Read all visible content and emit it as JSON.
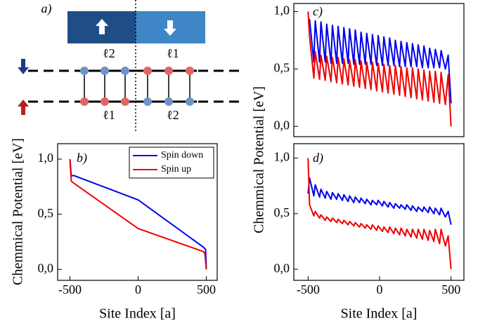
{
  "diagram": {
    "label": "a)",
    "top_labels": [
      "ℓ2",
      "ℓ1"
    ],
    "bottom_labels": [
      "ℓ1",
      "ℓ2"
    ]
  },
  "chart_data": [
    {
      "type": "line",
      "panel_label": "b)",
      "xlabel": "Site Index [a]",
      "ylabel": "Chemmical Potential [eV]",
      "xlim": [
        -590,
        580
      ],
      "ylim": [
        -0.1,
        1.14
      ],
      "xticks": [
        -500,
        0,
        500
      ],
      "yticks": [
        {
          "value": 0,
          "label": "0,0"
        },
        {
          "value": 0.5,
          "label": "0,5"
        },
        {
          "value": 1,
          "label": "1,0"
        }
      ],
      "legend": "upper right",
      "series": [
        {
          "name": "Spin down",
          "color": "#0000ee",
          "x": [
            -500,
            -490,
            -470,
            0,
            480,
            495,
            500
          ],
          "values": [
            1.0,
            0.85,
            0.85,
            0.63,
            0.2,
            0.18,
            0.0
          ]
        },
        {
          "name": "Spin up",
          "color": "#ee0000",
          "x": [
            -500,
            -490,
            -470,
            0,
            480,
            490,
            500
          ],
          "values": [
            1.0,
            0.8,
            0.78,
            0.37,
            0.16,
            0.14,
            0.0
          ]
        }
      ]
    },
    {
      "type": "line",
      "panel_label": "c)",
      "ylabel": "Chemmical Potential [eV]",
      "xlim": [
        -600,
        590
      ],
      "ylim": [
        -0.09,
        1.07
      ],
      "yticks": [
        {
          "value": 0,
          "label": "0,0"
        },
        {
          "value": 0.5,
          "label": "0,5"
        },
        {
          "value": 1,
          "label": "1,0"
        }
      ],
      "x": [
        -500,
        -490,
        -460,
        -450,
        -420,
        -410,
        -380,
        -370,
        -340,
        -330,
        -300,
        -290,
        -260,
        -250,
        -220,
        -210,
        -180,
        -170,
        -140,
        -130,
        -100,
        -90,
        -60,
        -50,
        -20,
        -10,
        20,
        30,
        60,
        70,
        100,
        110,
        140,
        150,
        180,
        190,
        220,
        230,
        260,
        270,
        300,
        310,
        340,
        350,
        380,
        390,
        420,
        430,
        460,
        480,
        500
      ],
      "series": [
        {
          "color": "#0000ee",
          "values": [
            0.92,
            0.93,
            0.56,
            0.92,
            0.56,
            0.91,
            0.56,
            0.89,
            0.55,
            0.88,
            0.55,
            0.87,
            0.55,
            0.86,
            0.55,
            0.85,
            0.54,
            0.84,
            0.54,
            0.82,
            0.54,
            0.81,
            0.54,
            0.8,
            0.53,
            0.79,
            0.53,
            0.78,
            0.53,
            0.77,
            0.53,
            0.75,
            0.52,
            0.74,
            0.52,
            0.73,
            0.52,
            0.72,
            0.52,
            0.71,
            0.51,
            0.7,
            0.51,
            0.68,
            0.51,
            0.67,
            0.51,
            0.66,
            0.5,
            0.62,
            0.2
          ]
        },
        {
          "color": "#ee0000",
          "values": [
            1.0,
            0.78,
            0.42,
            0.65,
            0.41,
            0.62,
            0.4,
            0.61,
            0.39,
            0.6,
            0.38,
            0.6,
            0.37,
            0.59,
            0.36,
            0.58,
            0.35,
            0.58,
            0.34,
            0.57,
            0.33,
            0.56,
            0.32,
            0.56,
            0.31,
            0.55,
            0.3,
            0.54,
            0.29,
            0.53,
            0.28,
            0.53,
            0.27,
            0.52,
            0.26,
            0.51,
            0.25,
            0.51,
            0.24,
            0.5,
            0.23,
            0.49,
            0.22,
            0.48,
            0.21,
            0.48,
            0.2,
            0.47,
            0.19,
            0.45,
            0.0
          ]
        }
      ]
    },
    {
      "type": "line",
      "panel_label": "d)",
      "xlabel": "Site Index [a]",
      "xlim": [
        -600,
        590
      ],
      "ylim": [
        -0.1,
        1.13
      ],
      "xticks": [
        -500,
        0,
        500
      ],
      "yticks": [
        {
          "value": 0,
          "label": "0,0"
        },
        {
          "value": 0.5,
          "label": "0,5"
        },
        {
          "value": 1,
          "label": "1,0"
        }
      ],
      "x": [
        -500,
        -490,
        -460,
        -450,
        -420,
        -410,
        -380,
        -370,
        -340,
        -330,
        -300,
        -290,
        -260,
        -250,
        -220,
        -210,
        -180,
        -170,
        -140,
        -130,
        -100,
        -90,
        -60,
        -50,
        -20,
        -10,
        20,
        30,
        60,
        70,
        100,
        110,
        140,
        150,
        180,
        190,
        220,
        230,
        260,
        270,
        300,
        310,
        340,
        350,
        380,
        390,
        420,
        430,
        460,
        480,
        500
      ],
      "series": [
        {
          "color": "#0000ee",
          "values": [
            0.68,
            0.82,
            0.66,
            0.76,
            0.65,
            0.72,
            0.64,
            0.7,
            0.63,
            0.69,
            0.63,
            0.68,
            0.62,
            0.67,
            0.61,
            0.66,
            0.6,
            0.65,
            0.6,
            0.64,
            0.59,
            0.63,
            0.58,
            0.62,
            0.58,
            0.62,
            0.57,
            0.61,
            0.56,
            0.6,
            0.55,
            0.59,
            0.55,
            0.58,
            0.54,
            0.58,
            0.53,
            0.57,
            0.52,
            0.56,
            0.52,
            0.56,
            0.51,
            0.56,
            0.5,
            0.55,
            0.49,
            0.55,
            0.47,
            0.52,
            0.4
          ]
        },
        {
          "color": "#ee0000",
          "values": [
            1.0,
            0.58,
            0.48,
            0.52,
            0.46,
            0.49,
            0.44,
            0.47,
            0.43,
            0.46,
            0.42,
            0.45,
            0.41,
            0.44,
            0.4,
            0.43,
            0.39,
            0.42,
            0.38,
            0.41,
            0.37,
            0.4,
            0.36,
            0.4,
            0.35,
            0.39,
            0.34,
            0.38,
            0.33,
            0.38,
            0.32,
            0.37,
            0.31,
            0.37,
            0.3,
            0.36,
            0.29,
            0.36,
            0.28,
            0.36,
            0.27,
            0.36,
            0.26,
            0.35,
            0.25,
            0.36,
            0.23,
            0.36,
            0.21,
            0.3,
            0.0
          ]
        }
      ]
    }
  ]
}
